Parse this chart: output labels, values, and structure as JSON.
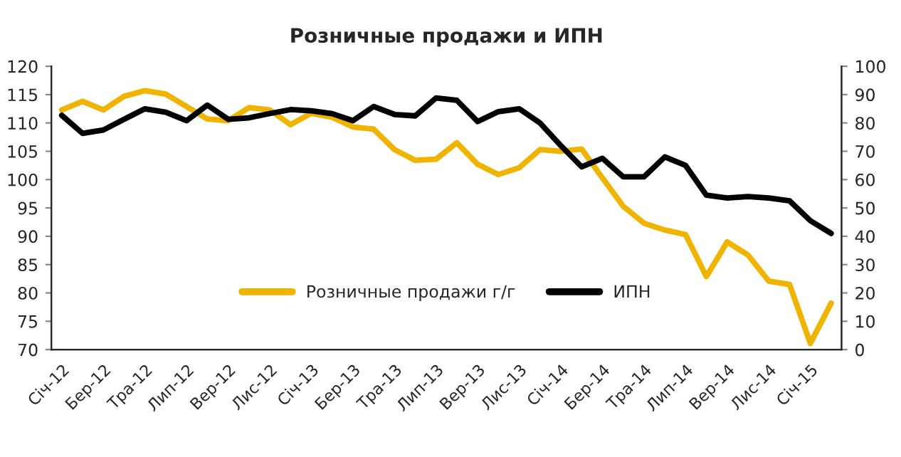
{
  "chart_data": {
    "type": "line",
    "title": "Розничные продажи и ИПН",
    "categories": [
      "Січ-12",
      null,
      "Бер-12",
      null,
      "Тра-12",
      null,
      "Лип-12",
      null,
      "Вер-12",
      null,
      "Лис-12",
      null,
      "Січ-13",
      null,
      "Бер-13",
      null,
      "Тра-13",
      null,
      "Лип-13",
      null,
      "Вер-13",
      null,
      "Лис-13",
      null,
      "Січ-14",
      null,
      "Бер-14",
      null,
      "Тра-14",
      null,
      "Лип-14",
      null,
      "Вер-14",
      null,
      "Лис-14",
      null,
      "Січ-15",
      null
    ],
    "series": [
      {
        "name": "Розничные продажи г/г",
        "color": "#f0b400",
        "axis": "y",
        "values": [
          112.3,
          113.8,
          112.3,
          114.7,
          115.7,
          115.1,
          112.9,
          110.7,
          110.4,
          112.7,
          112.3,
          109.7,
          111.7,
          111,
          109.3,
          108.9,
          105.3,
          103.4,
          103.6,
          106.5,
          102.7,
          100.9,
          102.1,
          105.3,
          105,
          105.4,
          100.3,
          95.3,
          92.3,
          91.1,
          90.3,
          82.9,
          89,
          86.7,
          82.1,
          81.5,
          71.1,
          78.2
        ]
      },
      {
        "name": "ИПН",
        "color": "#000000",
        "axis": "y2",
        "values": [
          82.7,
          76.3,
          77.5,
          81.3,
          85,
          83.8,
          80.8,
          86.3,
          81.3,
          81.8,
          83.3,
          84.7,
          84.3,
          83.3,
          80.8,
          85.8,
          83,
          82.5,
          88.8,
          88,
          80.5,
          84,
          85,
          80,
          72,
          64.5,
          67.5,
          61,
          61,
          68,
          65,
          54.5,
          53.5,
          54,
          53.5,
          52.5,
          45.5,
          41
        ]
      }
    ],
    "ylim": [
      70,
      120
    ],
    "yticks": [
      70,
      75,
      80,
      85,
      90,
      95,
      100,
      105,
      110,
      115,
      120
    ],
    "y2lim": [
      0,
      100
    ],
    "y2ticks": [
      0,
      10,
      20,
      30,
      40,
      50,
      60,
      70,
      80,
      90,
      100
    ],
    "grid": false,
    "legend": "bottom",
    "marker": "none",
    "line_style": "solid"
  }
}
